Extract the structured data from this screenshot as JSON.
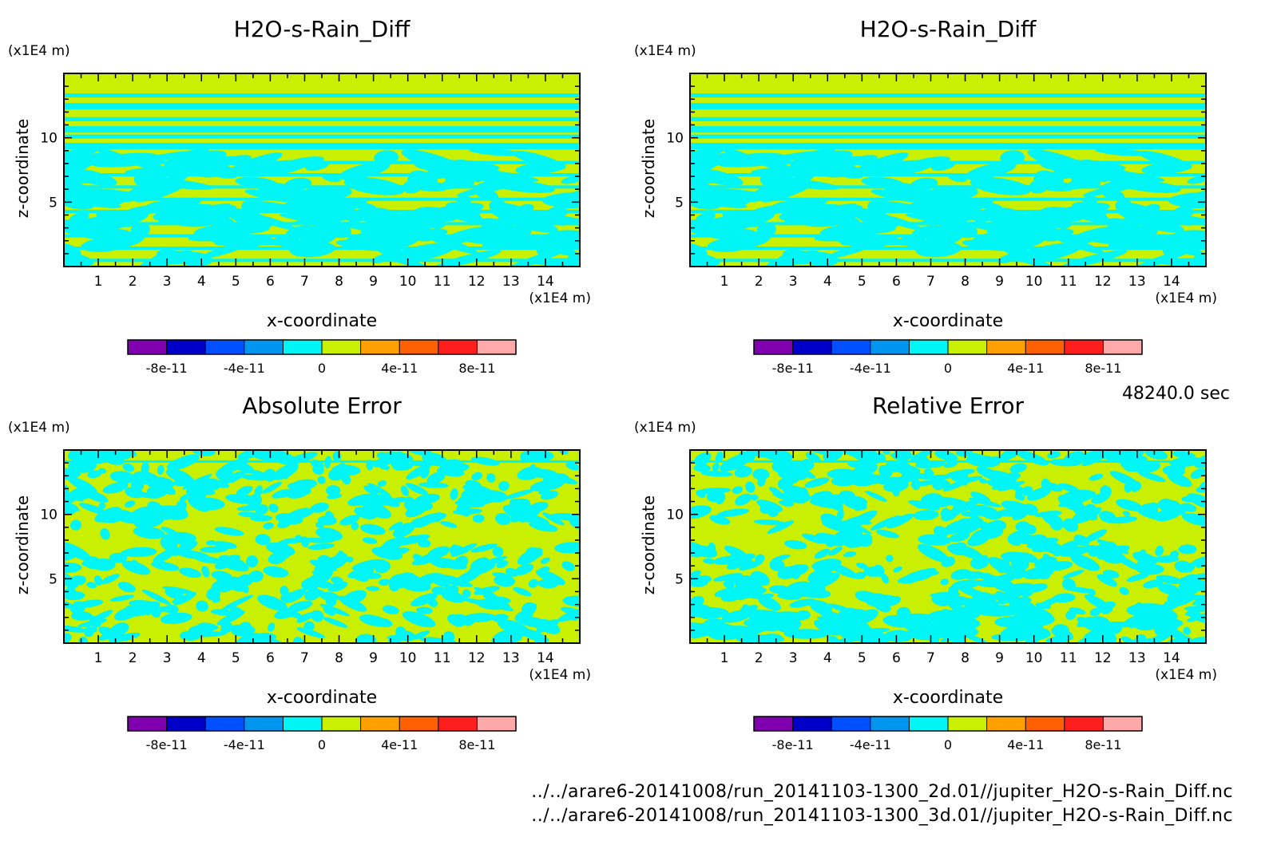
{
  "time_label": "48240.0 sec",
  "files": [
    "../../arare6-20141008/run_20141103-1300_2d.01//jupiter_H2O-s-Rain_Diff.nc",
    "../../arare6-20141008/run_20141103-1300_3d.01//jupiter_H2O-s-Rain_Diff.nc"
  ],
  "colorbar": {
    "colors": [
      "#8000b0",
      "#0000c8",
      "#0050ff",
      "#0096f0",
      "#00f5f5",
      "#c8f000",
      "#ffa000",
      "#ff6000",
      "#ff1e1e",
      "#ffaaaa"
    ],
    "tick_labels": [
      "-8e-11",
      "-4e-11",
      "0",
      "4e-11",
      "8e-11"
    ]
  },
  "chart_data": [
    {
      "type": "heatmap",
      "title": "H2O-s-Rain_Diff",
      "xlabel": "x-coordinate",
      "ylabel": "z-coordinate",
      "x_unit": "(x1E4 m)",
      "y_unit": "(x1E4 m)",
      "xlim": [
        0,
        15
      ],
      "ylim": [
        0,
        15
      ],
      "xticks": [
        1,
        2,
        3,
        4,
        5,
        6,
        7,
        8,
        9,
        10,
        11,
        12,
        13,
        14
      ],
      "yticks": [
        5,
        10
      ],
      "dominant_colors": [
        "#c8f000",
        "#00f5f5"
      ],
      "pattern_seed": 7
    },
    {
      "type": "heatmap",
      "title": "H2O-s-Rain_Diff",
      "xlabel": "x-coordinate",
      "ylabel": "z-coordinate",
      "x_unit": "(x1E4 m)",
      "y_unit": "(x1E4 m)",
      "xlim": [
        0,
        15
      ],
      "ylim": [
        0,
        15
      ],
      "xticks": [
        1,
        2,
        3,
        4,
        5,
        6,
        7,
        8,
        9,
        10,
        11,
        12,
        13,
        14
      ],
      "yticks": [
        5,
        10
      ],
      "dominant_colors": [
        "#c8f000",
        "#00f5f5"
      ],
      "pattern_seed": 7
    },
    {
      "type": "heatmap",
      "title": "Absolute Error",
      "xlabel": "x-coordinate",
      "ylabel": "z-coordinate",
      "x_unit": "(x1E4 m)",
      "y_unit": "(x1E4 m)",
      "xlim": [
        0,
        15
      ],
      "ylim": [
        0,
        15
      ],
      "xticks": [
        1,
        2,
        3,
        4,
        5,
        6,
        7,
        8,
        9,
        10,
        11,
        12,
        13,
        14
      ],
      "yticks": [
        5,
        10
      ],
      "dominant_colors": [
        "#c8f000",
        "#00f5f5"
      ],
      "pattern_seed": 23
    },
    {
      "type": "heatmap",
      "title": "Relative Error",
      "xlabel": "x-coordinate",
      "ylabel": "z-coordinate",
      "x_unit": "(x1E4 m)",
      "y_unit": "(x1E4 m)",
      "xlim": [
        0,
        15
      ],
      "ylim": [
        0,
        15
      ],
      "xticks": [
        1,
        2,
        3,
        4,
        5,
        6,
        7,
        8,
        9,
        10,
        11,
        12,
        13,
        14
      ],
      "yticks": [
        5,
        10
      ],
      "dominant_colors": [
        "#c8f000",
        "#00f5f5"
      ],
      "pattern_seed": 41
    }
  ]
}
